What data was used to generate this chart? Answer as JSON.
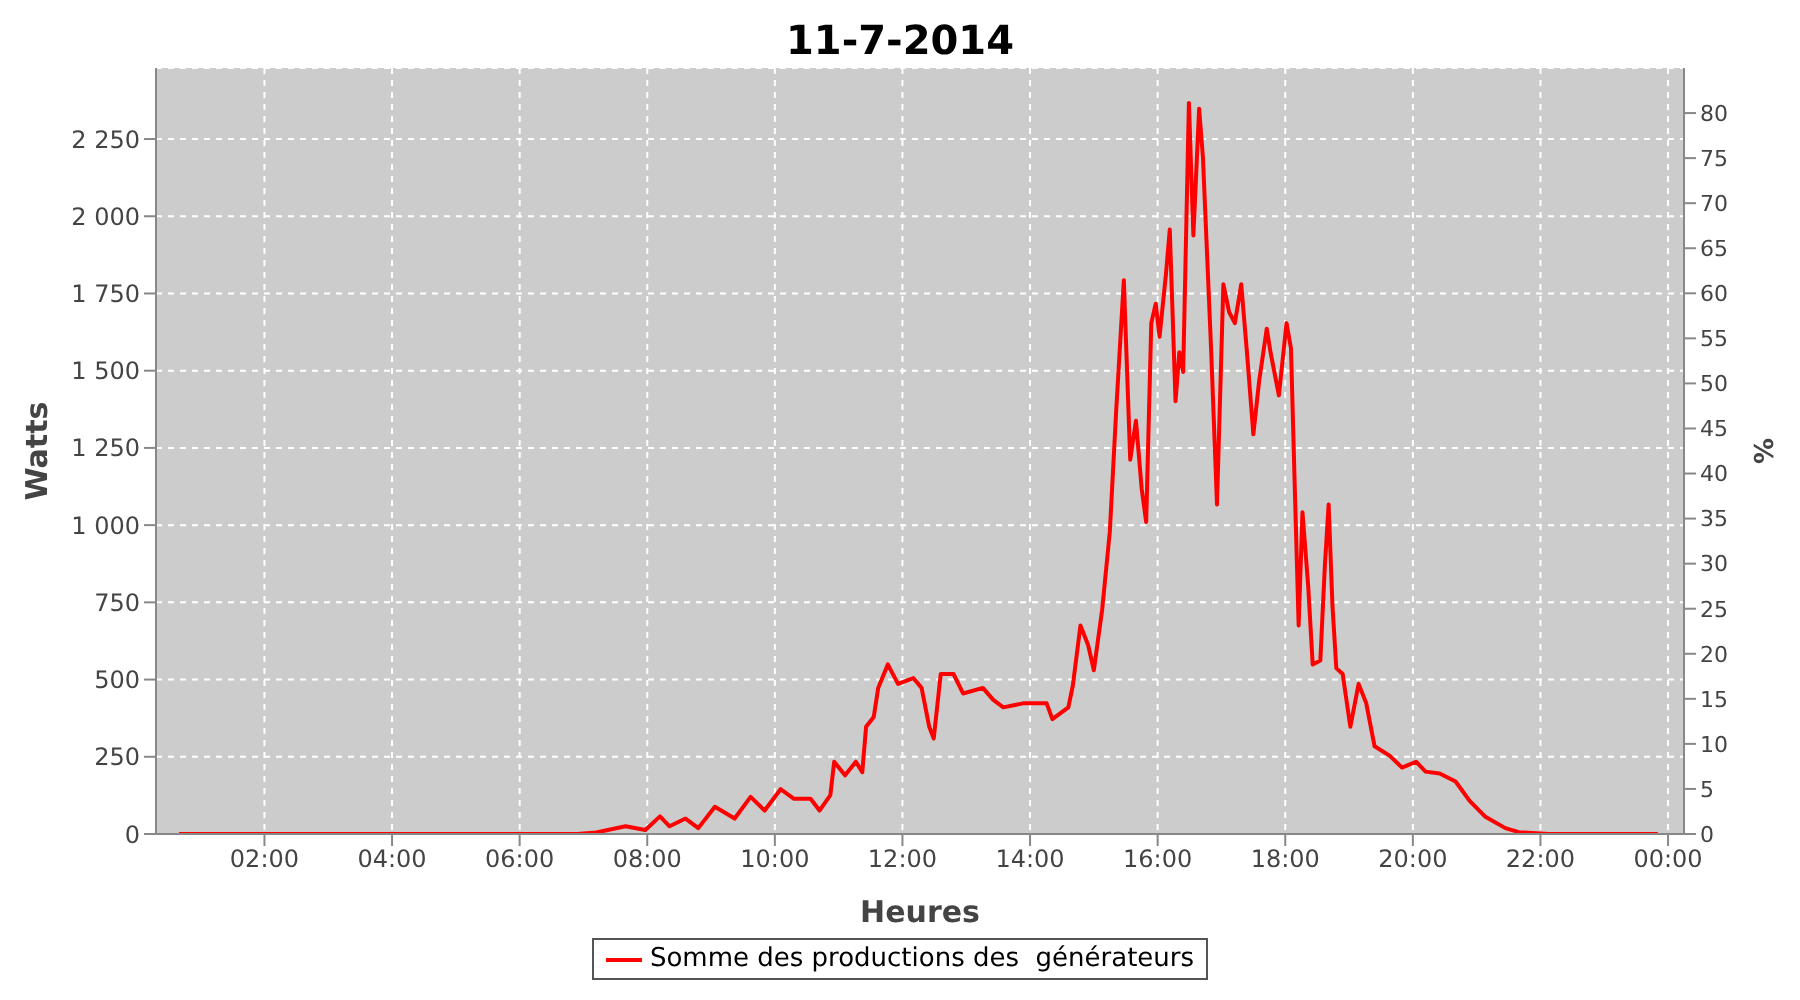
{
  "chart_data": {
    "type": "line",
    "title": "11-7-2014",
    "xlabel": "Heures",
    "ylabel": "Watts",
    "y2label": "%",
    "xlim": [
      0.3,
      24.25
    ],
    "ylim": [
      0,
      2480
    ],
    "y2lim": [
      0,
      85
    ],
    "xticks": [
      {
        "value": 2,
        "label": "02:00"
      },
      {
        "value": 4,
        "label": "04:00"
      },
      {
        "value": 6,
        "label": "06:00"
      },
      {
        "value": 8,
        "label": "08:00"
      },
      {
        "value": 10,
        "label": "10:00"
      },
      {
        "value": 12,
        "label": "12:00"
      },
      {
        "value": 14,
        "label": "14:00"
      },
      {
        "value": 16,
        "label": "16:00"
      },
      {
        "value": 18,
        "label": "18:00"
      },
      {
        "value": 20,
        "label": "20:00"
      },
      {
        "value": 22,
        "label": "22:00"
      },
      {
        "value": 24,
        "label": "00:00"
      }
    ],
    "yticks": [
      0,
      250,
      500,
      750,
      {
        "value": 1000,
        "label": "1 000"
      },
      {
        "value": 1250,
        "label": "1 250"
      },
      {
        "value": 1500,
        "label": "1 500"
      },
      {
        "value": 1750,
        "label": "1 750"
      },
      {
        "value": 2000,
        "label": "2 000"
      },
      {
        "value": 2250,
        "label": "2 250"
      }
    ],
    "y2ticks": [
      0,
      5,
      10,
      15,
      20,
      25,
      30,
      35,
      40,
      45,
      50,
      55,
      60,
      65,
      70,
      75,
      80
    ],
    "grid": true,
    "legend": "bottom",
    "marker": "none",
    "line_style": "solid",
    "x": [
      0.66,
      6.9,
      7.2,
      7.66,
      7.97,
      8.2,
      8.35,
      8.6,
      8.8,
      9.06,
      9.37,
      9.62,
      9.84,
      10.09,
      10.3,
      10.56,
      10.7,
      10.87,
      10.93,
      11.1,
      11.27,
      11.37,
      11.43,
      11.55,
      11.62,
      11.77,
      11.93,
      12.17,
      12.3,
      12.42,
      12.49,
      12.6,
      12.8,
      12.95,
      13.26,
      13.42,
      13.58,
      13.89,
      14.26,
      14.35,
      14.6,
      14.67,
      14.79,
      14.91,
      15.0,
      15.13,
      15.25,
      15.35,
      15.47,
      15.57,
      15.66,
      15.75,
      15.82,
      15.9,
      15.97,
      16.03,
      16.13,
      16.19,
      16.28,
      16.34,
      16.4,
      16.49,
      16.56,
      16.65,
      16.71,
      16.84,
      16.93,
      17.03,
      17.12,
      17.21,
      17.31,
      17.4,
      17.5,
      17.59,
      17.71,
      17.77,
      17.9,
      18.02,
      18.09,
      18.15,
      18.21,
      18.27,
      18.36,
      18.43,
      18.55,
      18.62,
      18.68,
      18.74,
      18.8,
      18.9,
      19.02,
      19.15,
      19.27,
      19.4,
      19.64,
      19.83,
      20.05,
      20.2,
      20.42,
      20.67,
      20.89,
      21.13,
      21.45,
      21.66,
      22.13,
      23.84
    ],
    "series": [
      {
        "name": "Somme des productions des  générateurs",
        "color": "#ff0000",
        "values": [
          0,
          0,
          5,
          25,
          13,
          57,
          25,
          50,
          19,
          88,
          50,
          120,
          76,
          145,
          114,
          114,
          76,
          126,
          234,
          190,
          234,
          200,
          347,
          379,
          473,
          549,
          486,
          505,
          473,
          347,
          309,
          518,
          518,
          455,
          473,
          435,
          410,
          423,
          423,
          372,
          410,
          480,
          675,
          612,
          530,
          726,
          978,
          1370,
          1793,
          1212,
          1338,
          1117,
          1010,
          1654,
          1717,
          1610,
          1812,
          1957,
          1401,
          1560,
          1496,
          2367,
          1938,
          2348,
          2190,
          1559,
          1067,
          1780,
          1690,
          1654,
          1780,
          1559,
          1294,
          1465,
          1636,
          1559,
          1420,
          1654,
          1572,
          1117,
          675,
          1042,
          802,
          549,
          562,
          865,
          1067,
          739,
          537,
          518,
          347,
          486,
          423,
          284,
          253,
          215,
          234,
          202,
          196,
          170,
          107,
          57,
          19,
          6,
          0,
          0
        ]
      }
    ]
  }
}
